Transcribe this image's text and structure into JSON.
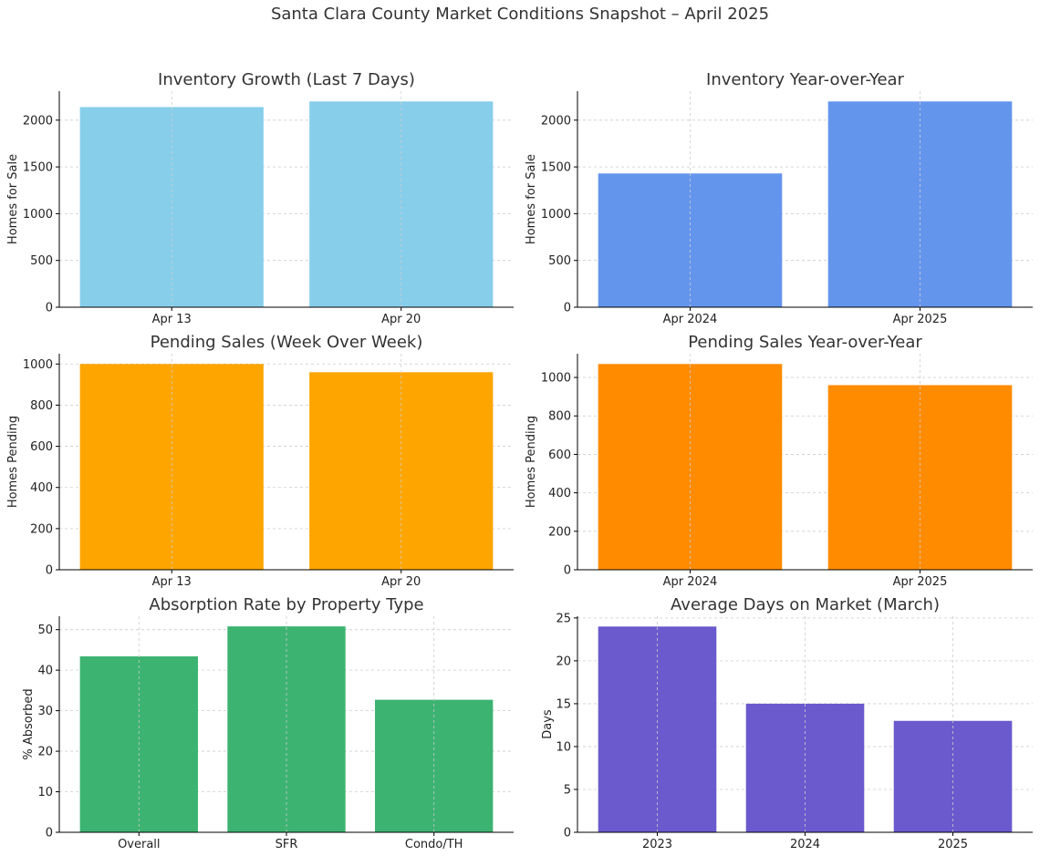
{
  "suptitle": "Santa Clara County Market Conditions Snapshot – April 2025",
  "chart_data": [
    {
      "type": "bar",
      "title": "Inventory Growth (Last 7 Days)",
      "xlabel": "",
      "ylabel": "Homes for Sale",
      "categories": [
        "Apr 13",
        "Apr 20"
      ],
      "values": [
        2140,
        2200
      ],
      "ylim": [
        0,
        2310
      ],
      "yticks": [
        0,
        500,
        1000,
        1500,
        2000
      ],
      "color": "#87CEEB",
      "grid": true
    },
    {
      "type": "bar",
      "title": "Inventory Year-over-Year",
      "xlabel": "",
      "ylabel": "Homes for Sale",
      "categories": [
        "Apr 2024",
        "Apr 2025"
      ],
      "values": [
        1430,
        2200
      ],
      "ylim": [
        0,
        2310
      ],
      "yticks": [
        0,
        500,
        1000,
        1500,
        2000
      ],
      "color": "#6495ED",
      "grid": true
    },
    {
      "type": "bar",
      "title": "Pending Sales (Week Over Week)",
      "xlabel": "",
      "ylabel": "Homes Pending",
      "categories": [
        "Apr 13",
        "Apr 20"
      ],
      "values": [
        1000,
        960
      ],
      "ylim": [
        0,
        1050
      ],
      "yticks": [
        0,
        200,
        400,
        600,
        800,
        1000
      ],
      "color": "#FFA500",
      "grid": true
    },
    {
      "type": "bar",
      "title": "Pending Sales Year-over-Year",
      "xlabel": "",
      "ylabel": "Homes Pending",
      "categories": [
        "Apr 2024",
        "Apr 2025"
      ],
      "values": [
        1070,
        960
      ],
      "ylim": [
        0,
        1123.5
      ],
      "yticks": [
        0,
        200,
        400,
        600,
        800,
        1000
      ],
      "color": "#FF8C00",
      "grid": true
    },
    {
      "type": "bar",
      "title": "Absorption Rate by Property Type",
      "xlabel": "",
      "ylabel": "% Absorbed",
      "categories": [
        "Overall",
        "SFR",
        "Condo/TH"
      ],
      "values": [
        43.4,
        50.8,
        32.7
      ],
      "ylim": [
        0,
        53.3
      ],
      "yticks": [
        0,
        10,
        20,
        30,
        40,
        50
      ],
      "color": "#3CB371",
      "grid": true
    },
    {
      "type": "bar",
      "title": "Average Days on Market (March)",
      "xlabel": "",
      "ylabel": "Days",
      "categories": [
        "2023",
        "2024",
        "2025"
      ],
      "values": [
        24,
        15,
        13
      ],
      "ylim": [
        0,
        25.2
      ],
      "yticks": [
        0,
        5,
        10,
        15,
        20,
        25
      ],
      "color": "#6A5ACD",
      "grid": true
    }
  ]
}
